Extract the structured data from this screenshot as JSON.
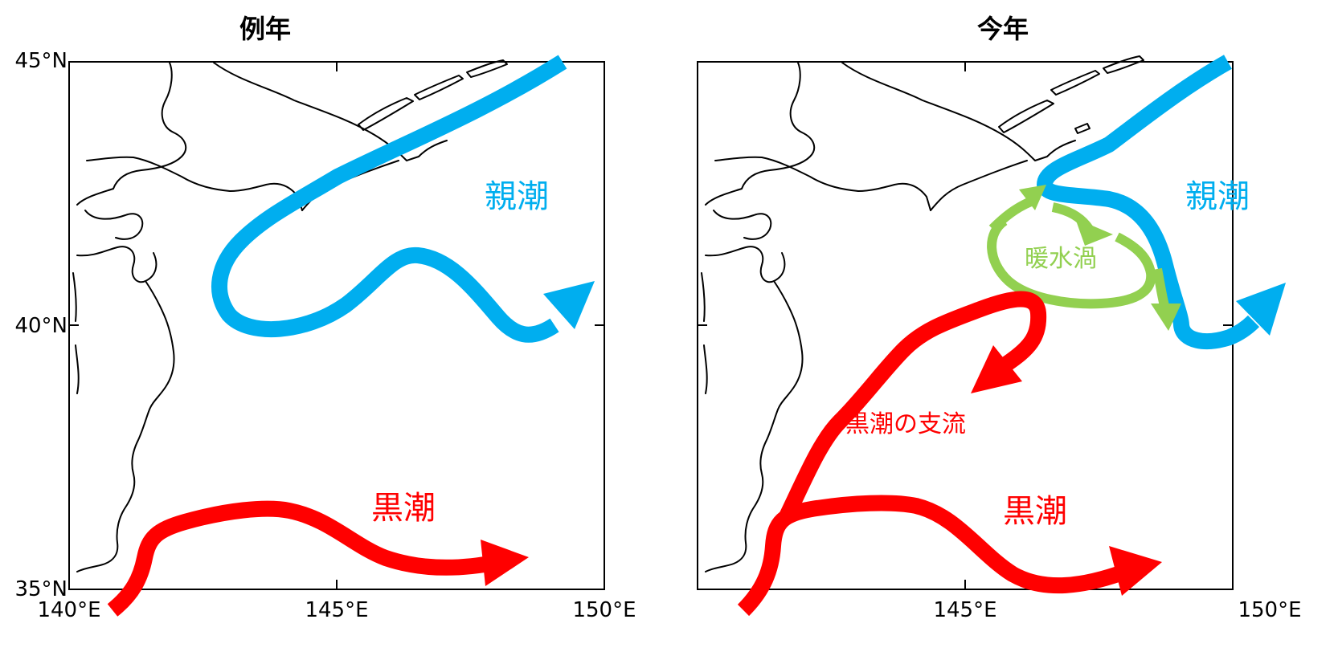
{
  "colors": {
    "oyashio": "#00aeef",
    "kuroshio": "#ff0000",
    "warm_eddy": "#92d050",
    "coast": "#000000"
  },
  "panels": [
    {
      "id": "normal",
      "title": "例年",
      "lat_ticks": [
        "45°N",
        "40°N",
        "35°N"
      ],
      "lon_ticks": [
        "140°E",
        "145°E",
        "150°E"
      ],
      "labels": {
        "oyashio": "親潮",
        "kuroshio": "黒潮"
      }
    },
    {
      "id": "this-year",
      "title": "今年",
      "lon_ticks": [
        "145°E",
        "150°E"
      ],
      "labels": {
        "oyashio": "親潮",
        "kuroshio": "黒潮",
        "warm_eddy": "暖水渦",
        "kuroshio_branch": "黒潮の支流"
      }
    }
  ]
}
